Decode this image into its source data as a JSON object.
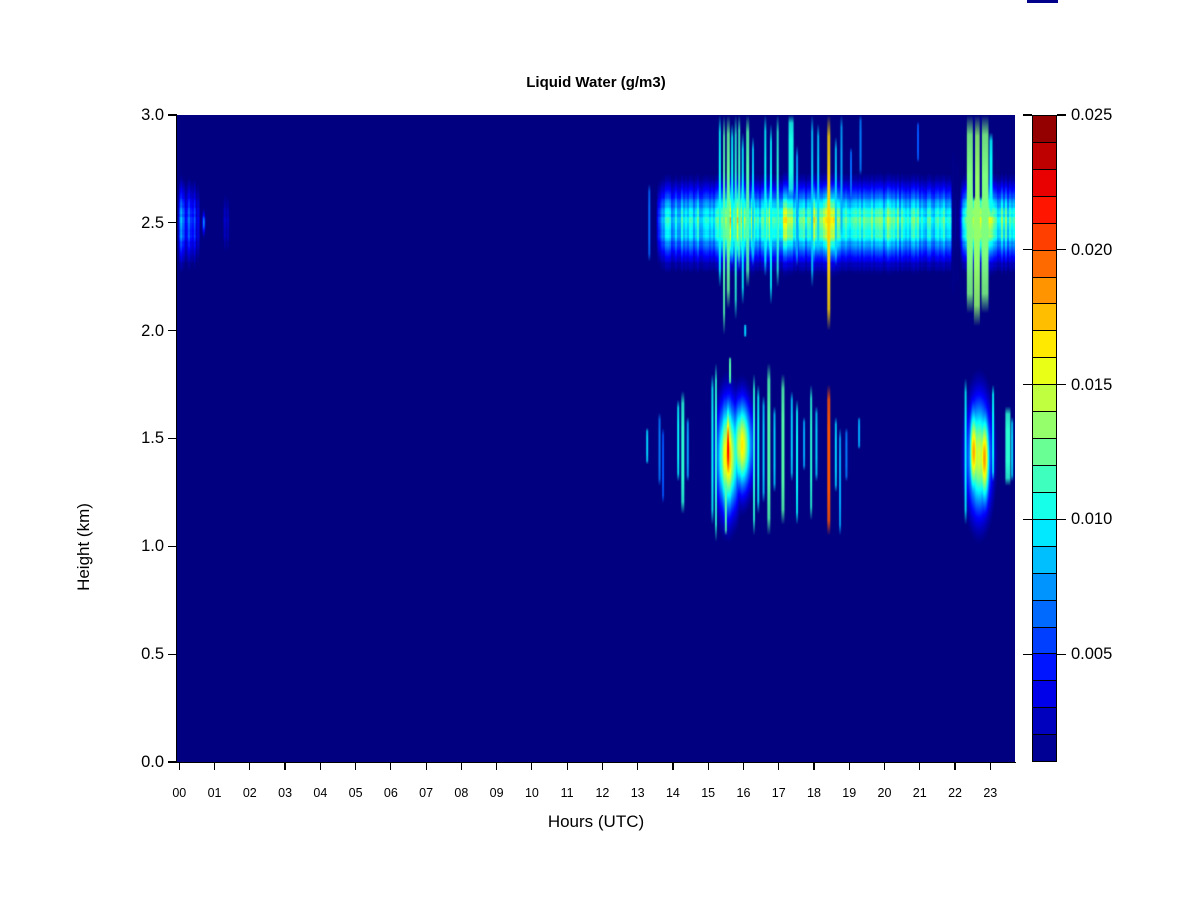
{
  "colors": {
    "page_bg": "#ffffff",
    "plot_bg_navy": "#000080",
    "axis": "#000000",
    "text": "#000000",
    "artifact": "#00008b"
  },
  "chart_data": {
    "type": "heatmap",
    "title": "Liquid Water (g/m3)",
    "xlabel": "Hours (UTC)",
    "ylabel": "Height (km)",
    "x_range_hours": [
      0,
      24
    ],
    "y_range_km": [
      0.0,
      3.0
    ],
    "grid": false,
    "x_ticks": [
      "00",
      "01",
      "02",
      "03",
      "04",
      "05",
      "06",
      "07",
      "08",
      "09",
      "10",
      "11",
      "12",
      "13",
      "14",
      "15",
      "16",
      "17",
      "18",
      "19",
      "20",
      "21",
      "22",
      "23"
    ],
    "y_ticks": [
      {
        "label": "0.0",
        "value": 0.0
      },
      {
        "label": "0.5",
        "value": 0.5
      },
      {
        "label": "1.0",
        "value": 1.0
      },
      {
        "label": "1.5",
        "value": 1.5
      },
      {
        "label": "2.0",
        "value": 2.0
      },
      {
        "label": "2.5",
        "value": 2.5
      },
      {
        "label": "3.0",
        "value": 3.0
      }
    ],
    "colorbar": {
      "position": "right",
      "colormap": "jet",
      "vmin": 0.001,
      "vmax": 0.025,
      "cells": 24,
      "ticks": [
        {
          "label": "0.005",
          "value": 0.005
        },
        {
          "label": "0.010",
          "value": 0.01
        },
        {
          "label": "0.015",
          "value": 0.015
        },
        {
          "label": "0.020",
          "value": 0.02
        },
        {
          "label": "0.025",
          "value": 0.025
        }
      ]
    },
    "background_value": 0.0003,
    "noise_seed": 7,
    "band": {
      "comment": "persistent stratus layer centered 2.5 km from ~13.5h to 24h; control points [hour, g/m3]",
      "center_km": 2.5,
      "sigma_km": 0.155,
      "controls": [
        [
          13.5,
          0.0008
        ],
        [
          13.57,
          0.004
        ],
        [
          13.75,
          0.0085
        ],
        [
          14.2,
          0.0095
        ],
        [
          14.8,
          0.0095
        ],
        [
          15.15,
          0.011
        ],
        [
          15.35,
          0.0145
        ],
        [
          15.6,
          0.016
        ],
        [
          15.9,
          0.0145
        ],
        [
          16.15,
          0.0125
        ],
        [
          16.45,
          0.011
        ],
        [
          16.7,
          0.0145
        ],
        [
          16.95,
          0.0125
        ],
        [
          17.25,
          0.014
        ],
        [
          17.55,
          0.0115
        ],
        [
          17.8,
          0.0125
        ],
        [
          18.1,
          0.016
        ],
        [
          18.3,
          0.0135
        ],
        [
          18.5,
          0.014
        ],
        [
          18.75,
          0.0115
        ],
        [
          19.2,
          0.0115
        ],
        [
          19.55,
          0.0125
        ],
        [
          19.9,
          0.012
        ],
        [
          20.4,
          0.0105
        ],
        [
          21.0,
          0.0105
        ],
        [
          21.6,
          0.01
        ],
        [
          21.88,
          0.009
        ],
        [
          21.93,
          0.002
        ],
        [
          22.12,
          0.002
        ],
        [
          22.2,
          0.009
        ],
        [
          22.45,
          0.013
        ],
        [
          22.7,
          0.0135
        ],
        [
          22.95,
          0.0125
        ],
        [
          23.15,
          0.0105
        ],
        [
          23.45,
          0.0105
        ],
        [
          23.7,
          0.009
        ]
      ]
    },
    "early_stripes": {
      "comment": "faint blue columns near 00-01h UTC at 2.5 km; [hour, g/m3, halfwidth_px, sigma_km]",
      "items": [
        [
          0.04,
          0.0085,
          2.5,
          0.165
        ],
        [
          0.11,
          0.0065,
          2,
          0.165
        ],
        [
          0.18,
          0.0042,
          2,
          0.165
        ],
        [
          0.26,
          0.0068,
          2.5,
          0.165
        ],
        [
          0.34,
          0.005,
          2,
          0.165
        ],
        [
          0.42,
          0.006,
          2,
          0.165
        ],
        [
          0.52,
          0.0038,
          2,
          0.165
        ],
        [
          0.68,
          0.0075,
          1.5,
          0.05
        ],
        [
          1.28,
          0.0028,
          2,
          0.14
        ],
        [
          1.36,
          0.0026,
          2,
          0.14
        ]
      ]
    },
    "blobs": {
      "comment": "gaussian cells; [center_hour, center_km, halfwidth_hour, halfheight_km, peak g/m3]",
      "items": [
        [
          15.55,
          1.42,
          0.3,
          0.24,
          0.0165
        ],
        [
          15.95,
          1.47,
          0.28,
          0.2,
          0.015
        ],
        [
          15.55,
          1.45,
          0.07,
          0.2,
          0.021
        ],
        [
          22.52,
          1.44,
          0.13,
          0.2,
          0.017
        ],
        [
          22.82,
          1.41,
          0.15,
          0.21,
          0.017
        ],
        [
          22.67,
          1.42,
          0.33,
          0.25,
          0.014
        ]
      ]
    },
    "streaks": {
      "comment": "thin vertical precipitation/virga streaks; [hour, km_bottom, km_top, g/m3, width_px]",
      "items": [
        [
          13.33,
          2.32,
          2.68,
          0.0065,
          2
        ],
        [
          15.33,
          2.2,
          3.0,
          0.01,
          2
        ],
        [
          15.45,
          1.98,
          3.0,
          0.012,
          2
        ],
        [
          15.57,
          2.1,
          3.0,
          0.0125,
          3
        ],
        [
          15.68,
          2.3,
          2.96,
          0.01,
          2
        ],
        [
          15.78,
          2.05,
          3.0,
          0.011,
          2
        ],
        [
          15.88,
          2.28,
          3.0,
          0.0115,
          2
        ],
        [
          15.98,
          2.12,
          2.92,
          0.01,
          2
        ],
        [
          16.12,
          2.2,
          3.0,
          0.012,
          3
        ],
        [
          16.27,
          2.3,
          2.9,
          0.009,
          2
        ],
        [
          16.62,
          2.25,
          3.0,
          0.01,
          2
        ],
        [
          16.78,
          2.12,
          2.96,
          0.01,
          2
        ],
        [
          16.97,
          2.2,
          3.0,
          0.011,
          2
        ],
        [
          17.35,
          2.62,
          3.0,
          0.0105,
          5
        ],
        [
          17.52,
          2.3,
          2.86,
          0.008,
          2
        ],
        [
          17.95,
          2.2,
          3.0,
          0.009,
          2
        ],
        [
          18.12,
          2.35,
          2.96,
          0.009,
          2
        ],
        [
          18.42,
          2.0,
          3.0,
          0.017,
          3
        ],
        [
          18.62,
          2.3,
          2.9,
          0.009,
          2
        ],
        [
          18.78,
          2.42,
          3.0,
          0.008,
          2
        ],
        [
          19.05,
          2.6,
          2.85,
          0.0065,
          2
        ],
        [
          19.32,
          2.72,
          3.0,
          0.007,
          2
        ],
        [
          20.95,
          2.78,
          2.97,
          0.006,
          2
        ],
        [
          22.42,
          2.08,
          3.0,
          0.013,
          6
        ],
        [
          22.62,
          2.02,
          3.0,
          0.0135,
          6
        ],
        [
          22.85,
          2.08,
          3.0,
          0.013,
          7
        ],
        [
          23.02,
          2.52,
          2.92,
          0.01,
          3
        ],
        [
          13.27,
          1.38,
          1.55,
          0.009,
          2
        ],
        [
          13.62,
          1.28,
          1.62,
          0.007,
          2
        ],
        [
          13.72,
          1.2,
          1.55,
          0.006,
          2
        ],
        [
          14.15,
          1.3,
          1.68,
          0.01,
          2
        ],
        [
          14.28,
          1.15,
          1.72,
          0.011,
          3
        ],
        [
          14.42,
          1.3,
          1.6,
          0.008,
          2
        ],
        [
          15.12,
          1.1,
          1.8,
          0.01,
          2
        ],
        [
          15.22,
          1.02,
          1.85,
          0.011,
          2
        ],
        [
          15.5,
          1.05,
          1.3,
          0.012,
          2
        ],
        [
          15.62,
          1.75,
          1.88,
          0.012,
          2
        ],
        [
          16.05,
          1.97,
          2.03,
          0.009,
          2
        ],
        [
          16.3,
          1.05,
          1.8,
          0.011,
          2
        ],
        [
          16.42,
          1.15,
          1.75,
          0.01,
          2
        ],
        [
          16.57,
          1.2,
          1.7,
          0.009,
          2
        ],
        [
          16.72,
          1.05,
          1.85,
          0.012,
          3
        ],
        [
          16.88,
          1.25,
          1.65,
          0.009,
          2
        ],
        [
          17.12,
          1.1,
          1.8,
          0.012,
          3
        ],
        [
          17.37,
          1.3,
          1.72,
          0.009,
          2
        ],
        [
          17.52,
          1.1,
          1.68,
          0.01,
          2
        ],
        [
          17.72,
          1.35,
          1.6,
          0.008,
          2
        ],
        [
          17.92,
          1.12,
          1.75,
          0.011,
          2
        ],
        [
          18.07,
          1.3,
          1.65,
          0.009,
          2
        ],
        [
          18.42,
          1.05,
          1.75,
          0.02,
          3
        ],
        [
          18.62,
          1.25,
          1.6,
          0.009,
          2
        ],
        [
          18.74,
          1.05,
          1.55,
          0.008,
          2
        ],
        [
          18.92,
          1.3,
          1.55,
          0.007,
          2
        ],
        [
          19.28,
          1.45,
          1.6,
          0.008,
          2
        ],
        [
          22.3,
          1.1,
          1.78,
          0.01,
          2
        ],
        [
          23.08,
          1.3,
          1.75,
          0.01,
          2
        ],
        [
          23.5,
          1.28,
          1.65,
          0.011,
          5
        ],
        [
          23.62,
          1.3,
          1.6,
          0.009,
          2
        ]
      ]
    },
    "dark_streaks": {
      "comment": "clear-air gaps cutting the 2.5 km band; [hour, km_bottom, km_top, g/m3, width_px]",
      "items": [
        [
          21.95,
          2.15,
          2.85,
          0.0012,
          3
        ],
        [
          22.06,
          2.2,
          2.8,
          0.0012,
          3
        ],
        [
          22.54,
          2.6,
          3.0,
          0.0015,
          2
        ],
        [
          22.73,
          2.6,
          3.0,
          0.0015,
          2
        ]
      ]
    }
  }
}
